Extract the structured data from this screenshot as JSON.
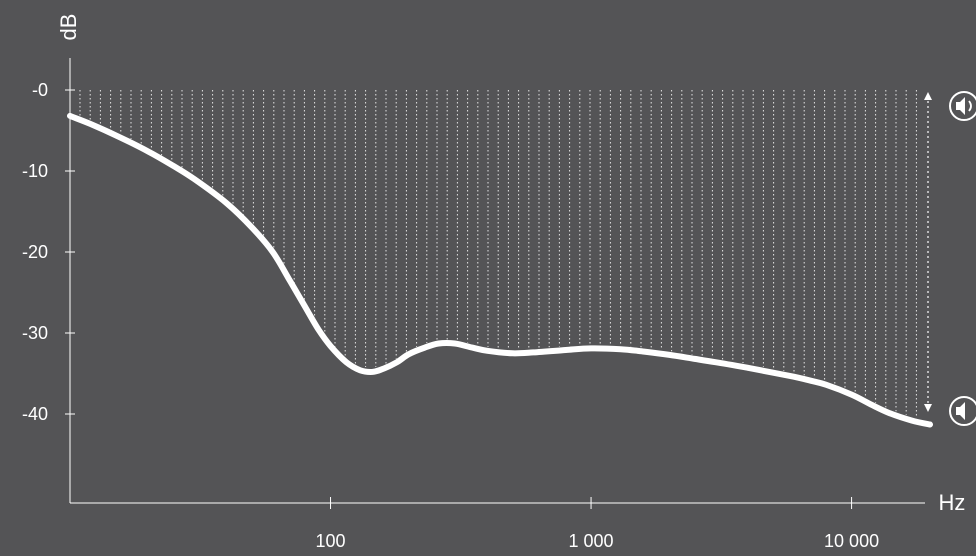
{
  "chart_data": {
    "type": "line",
    "title": "",
    "xlabel": "Hz",
    "ylabel": "dB",
    "x_scale": "log",
    "xlim": [
      10,
      20000
    ],
    "ylim": [
      -50,
      0
    ],
    "x_ticks": [
      {
        "value": 100,
        "label": "100"
      },
      {
        "value": 1000,
        "label": "1 000"
      },
      {
        "value": 10000,
        "label": "10 000"
      }
    ],
    "y_ticks": [
      {
        "value": 0,
        "label": "-0"
      },
      {
        "value": -10,
        "label": "-10"
      },
      {
        "value": -20,
        "label": "-20"
      },
      {
        "value": -30,
        "label": "-30"
      },
      {
        "value": -40,
        "label": "-40"
      }
    ],
    "grid": false,
    "legend": "none",
    "fill_between": {
      "upper": 0,
      "style": "dotted vertical hatching"
    },
    "series": [
      {
        "x": [
          10,
          12,
          15,
          20,
          25,
          30,
          40,
          50,
          60,
          70,
          80,
          90,
          100,
          115,
          130,
          145,
          160,
          180,
          200,
          230,
          260,
          300,
          350,
          400,
          500,
          600,
          800,
          1000,
          1300,
          1600,
          2000,
          2500,
          3000,
          4000,
          5000,
          6000,
          7000,
          8000,
          10000,
          12000,
          14000,
          17000,
          20000
        ],
        "values": [
          -3.2,
          -4.2,
          -5.6,
          -7.6,
          -9.4,
          -11.0,
          -14.0,
          -17.0,
          -20.0,
          -23.6,
          -26.8,
          -29.6,
          -31.6,
          -33.6,
          -34.6,
          -34.8,
          -34.4,
          -33.6,
          -32.6,
          -31.8,
          -31.3,
          -31.3,
          -31.8,
          -32.2,
          -32.5,
          -32.4,
          -32.1,
          -31.9,
          -32.0,
          -32.3,
          -32.7,
          -33.2,
          -33.6,
          -34.3,
          -34.9,
          -35.4,
          -35.9,
          -36.4,
          -37.6,
          -38.9,
          -39.9,
          -40.8,
          -41.3
        ],
        "color": "#ffffff"
      }
    ],
    "range_arrow": {
      "top": 0,
      "bottom": -40
    },
    "speaker_icons": [
      "speaker-loud-icon",
      "speaker-quiet-icon"
    ]
  }
}
